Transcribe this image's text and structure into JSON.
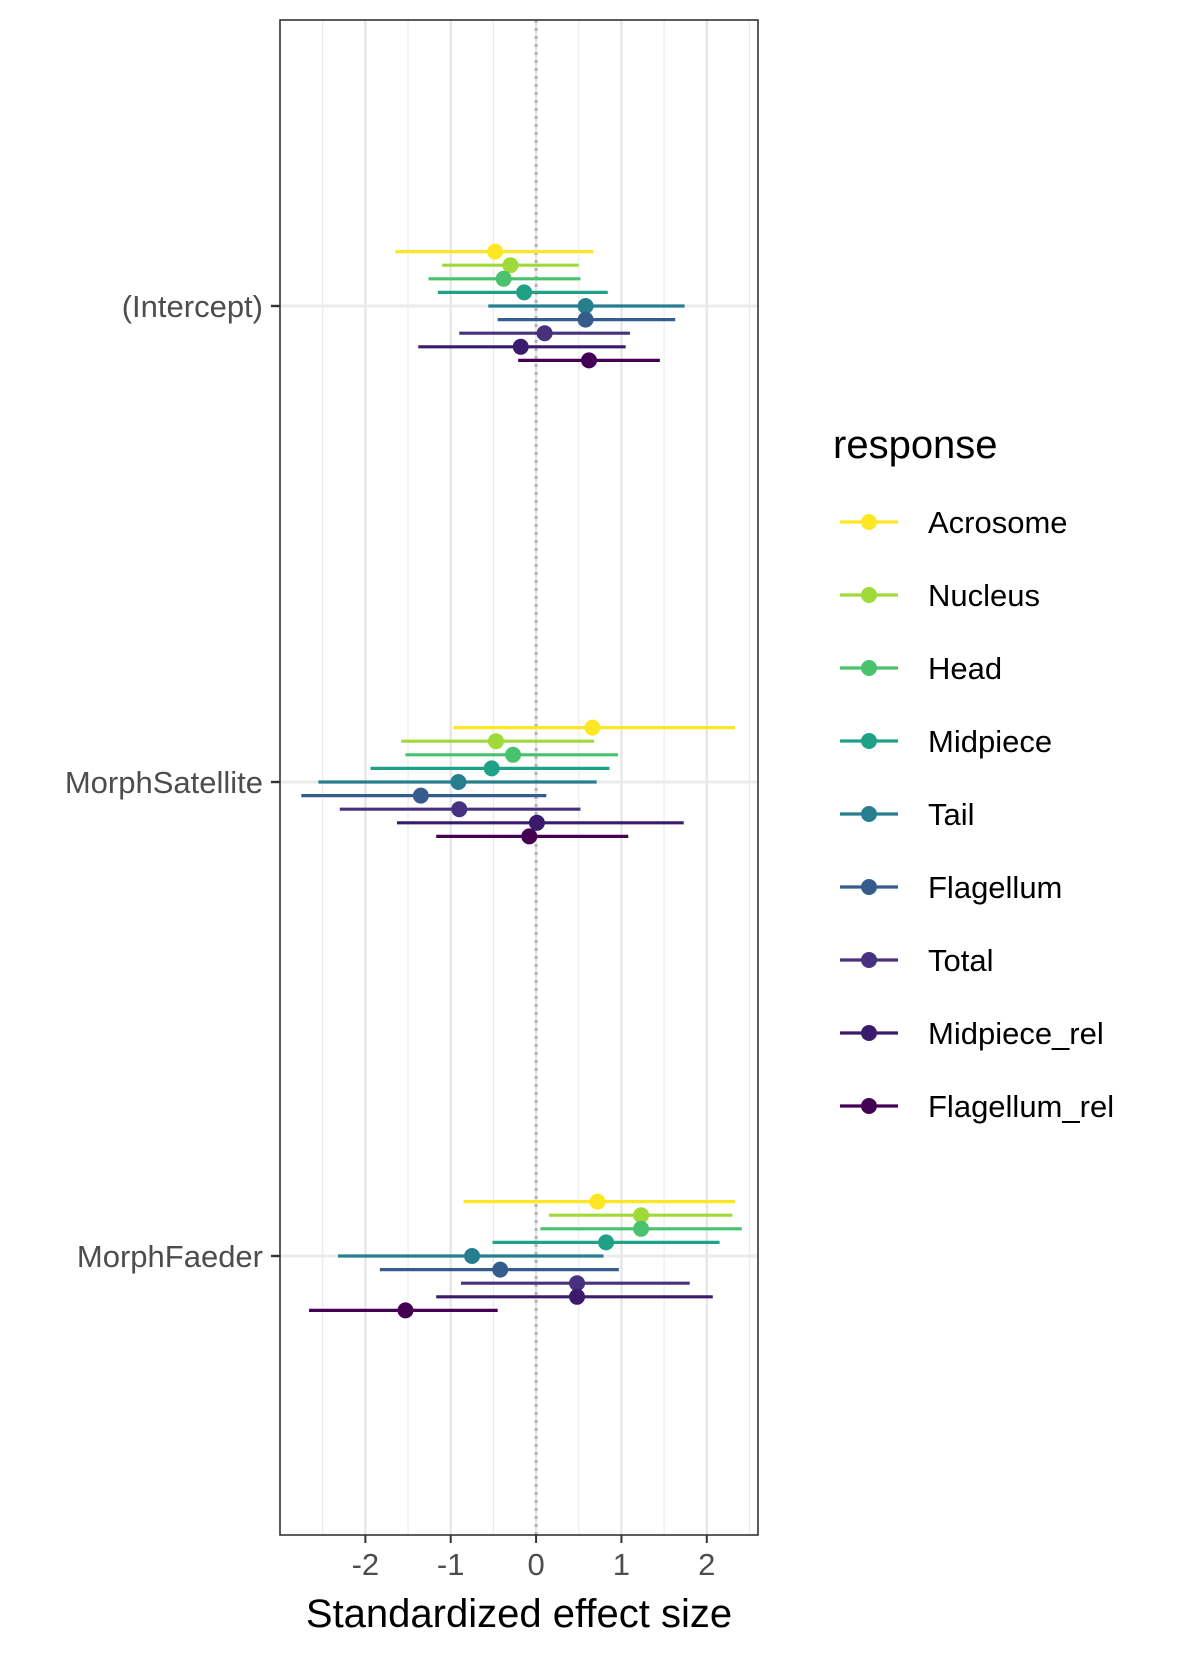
{
  "chart_data": {
    "type": "scatter",
    "subtype": "forest-plot (point estimates with horizontal confidence intervals)",
    "title": "",
    "xlabel": "Standardized effect size",
    "ylabel": "",
    "xlim": [
      -3.0,
      2.6
    ],
    "x_ticks": [
      "-2",
      "-1",
      "0",
      "1",
      "2"
    ],
    "x_tick_values": [
      -2,
      -1,
      0,
      1,
      2
    ],
    "reference_line": {
      "x": 0,
      "style": "dotted",
      "color": "#b3b3b3"
    },
    "grid": true,
    "theme": "bw",
    "categories": [
      "(Intercept)",
      "MorphSatellite",
      "MorphFaeder"
    ],
    "legend": {
      "title": "response",
      "position": "right"
    },
    "series": [
      {
        "name": "Acrosome",
        "color": "#FDE725",
        "points": [
          {
            "term": "(Intercept)",
            "estimate": -0.48,
            "low": -1.65,
            "high": 0.67
          },
          {
            "term": "MorphSatellite",
            "estimate": 0.66,
            "low": -0.97,
            "high": 2.33
          },
          {
            "term": "MorphFaeder",
            "estimate": 0.72,
            "low": -0.85,
            "high": 2.33
          }
        ]
      },
      {
        "name": "Nucleus",
        "color": "#A0DA39",
        "points": [
          {
            "term": "(Intercept)",
            "estimate": -0.3,
            "low": -1.1,
            "high": 0.5
          },
          {
            "term": "MorphSatellite",
            "estimate": -0.47,
            "low": -1.58,
            "high": 0.68
          },
          {
            "term": "MorphFaeder",
            "estimate": 1.23,
            "low": 0.15,
            "high": 2.3
          }
        ]
      },
      {
        "name": "Head",
        "color": "#4AC16D",
        "points": [
          {
            "term": "(Intercept)",
            "estimate": -0.38,
            "low": -1.26,
            "high": 0.52
          },
          {
            "term": "MorphSatellite",
            "estimate": -0.27,
            "low": -1.53,
            "high": 0.96
          },
          {
            "term": "MorphFaeder",
            "estimate": 1.23,
            "low": 0.05,
            "high": 2.41
          }
        ]
      },
      {
        "name": "Midpiece",
        "color": "#1FA187",
        "points": [
          {
            "term": "(Intercept)",
            "estimate": -0.14,
            "low": -1.15,
            "high": 0.84
          },
          {
            "term": "MorphSatellite",
            "estimate": -0.52,
            "low": -1.94,
            "high": 0.86
          },
          {
            "term": "MorphFaeder",
            "estimate": 0.82,
            "low": -0.51,
            "high": 2.15
          }
        ]
      },
      {
        "name": "Tail",
        "color": "#277F8E",
        "points": [
          {
            "term": "(Intercept)",
            "estimate": 0.58,
            "low": -0.56,
            "high": 1.74
          },
          {
            "term": "MorphSatellite",
            "estimate": -0.91,
            "low": -2.55,
            "high": 0.71
          },
          {
            "term": "MorphFaeder",
            "estimate": -0.75,
            "low": -2.32,
            "high": 0.79
          }
        ]
      },
      {
        "name": "Flagellum",
        "color": "#365C8D",
        "points": [
          {
            "term": "(Intercept)",
            "estimate": 0.58,
            "low": -0.45,
            "high": 1.63
          },
          {
            "term": "MorphSatellite",
            "estimate": -1.35,
            "low": -2.75,
            "high": 0.12
          },
          {
            "term": "MorphFaeder",
            "estimate": -0.42,
            "low": -1.83,
            "high": 0.97
          }
        ]
      },
      {
        "name": "Total",
        "color": "#46327E",
        "points": [
          {
            "term": "(Intercept)",
            "estimate": 0.1,
            "low": -0.9,
            "high": 1.1
          },
          {
            "term": "MorphSatellite",
            "estimate": -0.9,
            "low": -2.3,
            "high": 0.52
          },
          {
            "term": "MorphFaeder",
            "estimate": 0.48,
            "low": -0.88,
            "high": 1.8
          }
        ]
      },
      {
        "name": "Midpiece_rel",
        "color": "#3B1C6C",
        "points": [
          {
            "term": "(Intercept)",
            "estimate": -0.18,
            "low": -1.38,
            "high": 1.05
          },
          {
            "term": "MorphSatellite",
            "estimate": 0.01,
            "low": -1.63,
            "high": 1.73
          },
          {
            "term": "MorphFaeder",
            "estimate": 0.48,
            "low": -1.17,
            "high": 2.07
          }
        ]
      },
      {
        "name": "Flagellum_rel",
        "color": "#440154",
        "points": [
          {
            "term": "(Intercept)",
            "estimate": 0.62,
            "low": -0.21,
            "high": 1.45
          },
          {
            "term": "MorphSatellite",
            "estimate": -0.08,
            "low": -1.17,
            "high": 1.08
          },
          {
            "term": "MorphFaeder",
            "estimate": -1.53,
            "low": -2.66,
            "high": -0.45
          }
        ]
      }
    ]
  }
}
